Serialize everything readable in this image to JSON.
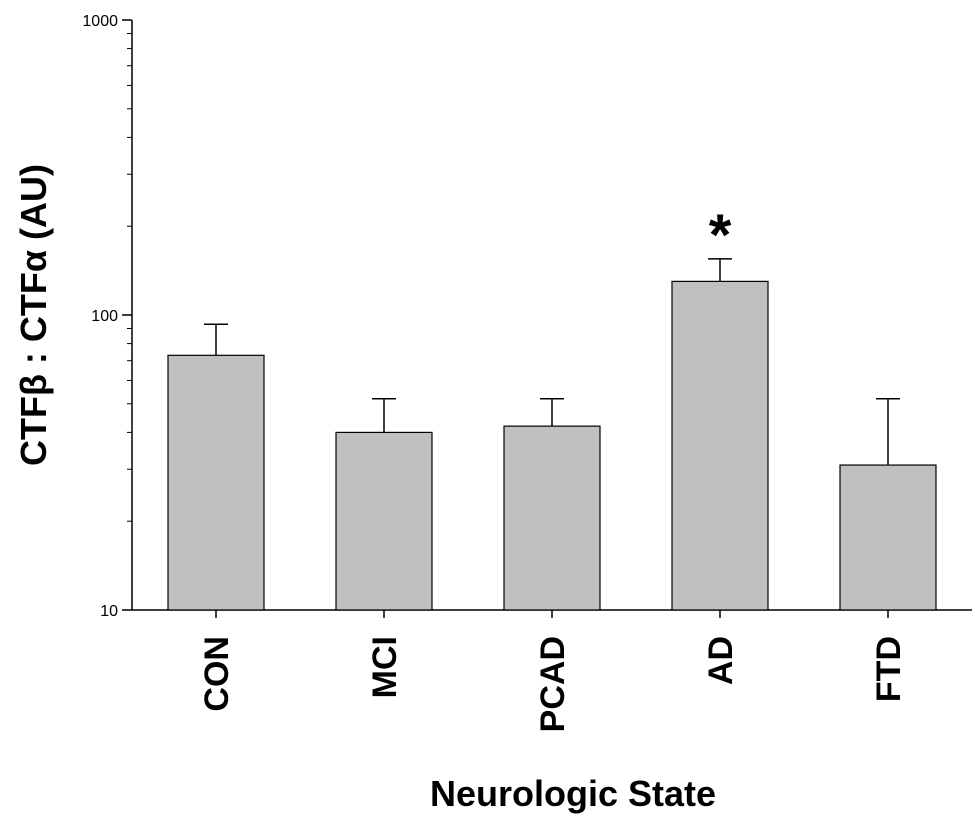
{
  "chart_data": {
    "type": "bar",
    "categories": [
      "CON",
      "MCI",
      "PCAD",
      "AD",
      "FTD"
    ],
    "values": [
      73,
      40,
      42,
      130,
      31
    ],
    "error_upper": [
      93,
      52,
      52,
      155,
      52
    ],
    "significance": [
      "",
      "",
      "",
      "*",
      ""
    ],
    "xlabel": "Neurologic State",
    "ylabel": "CTFβ : CTFα (AU)",
    "yscale": "log",
    "ylim": [
      10,
      1000
    ],
    "yticks": [
      10,
      100,
      1000
    ],
    "ytick_labels": [
      "10",
      "100",
      "1000"
    ],
    "grid": false,
    "legend": "none",
    "colors": {
      "bar_fill": "#c0c0c0",
      "bar_stroke": "#000000",
      "axis": "#000000"
    }
  }
}
